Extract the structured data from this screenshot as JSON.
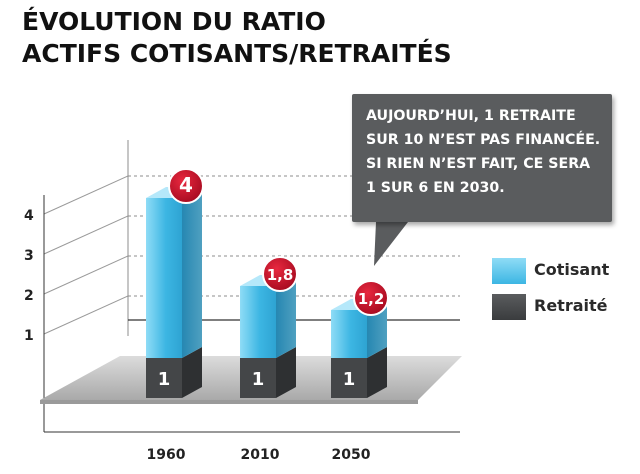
{
  "header": {
    "title_line1": "ÉVOLUTION DU RATIO",
    "title_line2": "ACTIFS COTISANTS/RETRAITÉS"
  },
  "callout": {
    "text": "AUJOURD’HUI, 1 RETRAITE\nSUR 10 N’EST PAS FINANCÉE.\nSI RIEN N’EST FAIT, CE SERA\n1 SUR 6 EN 2030."
  },
  "legend": {
    "items": [
      {
        "label": "Cotisant",
        "color": "#3cb6e3"
      },
      {
        "label": "Retraité",
        "color": "#444648"
      }
    ]
  },
  "chart_data": {
    "type": "bar",
    "stacked": true,
    "categories": [
      "1960",
      "2010",
      "2050"
    ],
    "yticks": [
      "1",
      "2",
      "3",
      "4"
    ],
    "ylim": [
      0,
      4.5
    ],
    "series": [
      {
        "name": "Retraité",
        "values": [
          1,
          1,
          1
        ],
        "labels": [
          "1",
          "1",
          "1"
        ],
        "color": "#444648"
      },
      {
        "name": "Cotisant",
        "values": [
          4,
          1.8,
          1.2
        ],
        "labels": [
          "4",
          "1,8",
          "1,2"
        ],
        "color": "#3cb6e3"
      }
    ],
    "colors": {
      "badge": "#c8102e",
      "floor": "#c8c8c8",
      "accent": "#3cb6e3",
      "dark": "#444648"
    }
  }
}
